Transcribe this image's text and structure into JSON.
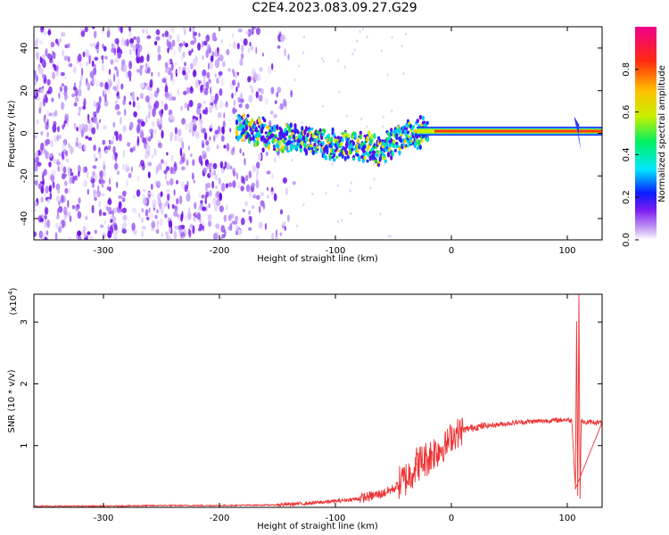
{
  "title": "C2E4.2023.083.09.27.G29",
  "colors": {
    "axis": "#000000",
    "snr_line": "#ee3333",
    "noise_purple": "#7a1cf0"
  },
  "chart_data": [
    {
      "type": "heatmap",
      "xlabel": "Height of straight line (km)",
      "ylabel": "Frequency (Hz)",
      "xlim": [
        -360,
        130
      ],
      "ylim": [
        -50,
        50
      ],
      "xticks": [
        -300,
        -200,
        -100,
        0,
        100
      ],
      "yticks": [
        -40,
        -20,
        0,
        20,
        40
      ],
      "colorbar": {
        "label": "Normalized spectral amplitude",
        "range": [
          0.0,
          1.0
        ],
        "ticks": [
          0.0,
          0.2,
          0.4,
          0.6,
          0.8
        ],
        "tick_labels": [
          "0.0",
          "0.2",
          "0.4",
          "0.6",
          "0.8"
        ],
        "placement": "right"
      },
      "features": {
        "noise_region_x": [
          -360,
          -145
        ],
        "signal_start_x": -185,
        "signal_center_freq": [
          [
            -185,
            3
          ],
          [
            -150,
            -2
          ],
          [
            -120,
            -4
          ],
          [
            -90,
            -6
          ],
          [
            -60,
            -8
          ],
          [
            -40,
            -1
          ],
          [
            -20,
            1
          ],
          [
            0,
            1
          ],
          [
            50,
            1
          ],
          [
            100,
            1
          ],
          [
            110,
            1
          ],
          [
            130,
            1
          ]
        ]
      }
    },
    {
      "type": "line",
      "xlabel": "Height of straight line (km)",
      "ylabel": "SNR (10 * v/v)",
      "y_multiplier_label": "(x10",
      "y_multiplier_exp": "4",
      "y_multiplier_close": ")",
      "xlim": [
        -360,
        130
      ],
      "ylim": [
        0,
        3.45
      ],
      "xticks": [
        -300,
        -200,
        -100,
        0,
        100
      ],
      "yticks": [
        1,
        2,
        3
      ],
      "series": [
        {
          "x": [
            -360,
            -300,
            -250,
            -200,
            -150,
            -120,
            -100,
            -80,
            -60,
            -50,
            -40,
            -35,
            -30,
            -25,
            -20,
            -15,
            -10,
            -5,
            0,
            5,
            10,
            20,
            30,
            40,
            50,
            60,
            70,
            80,
            90,
            100,
            104,
            107,
            108,
            109,
            110,
            111,
            112,
            115,
            120,
            130
          ],
          "y": [
            0.02,
            0.02,
            0.03,
            0.03,
            0.04,
            0.07,
            0.1,
            0.14,
            0.22,
            0.3,
            0.45,
            0.55,
            0.7,
            0.75,
            0.8,
            0.9,
            0.95,
            1.0,
            1.15,
            1.2,
            1.25,
            1.3,
            1.32,
            1.34,
            1.36,
            1.38,
            1.39,
            1.4,
            1.41,
            1.42,
            1.4,
            0.3,
            3.0,
            0.2,
            3.45,
            0.15,
            1.4,
            1.37,
            1.38,
            1.37
          ]
        }
      ]
    }
  ]
}
